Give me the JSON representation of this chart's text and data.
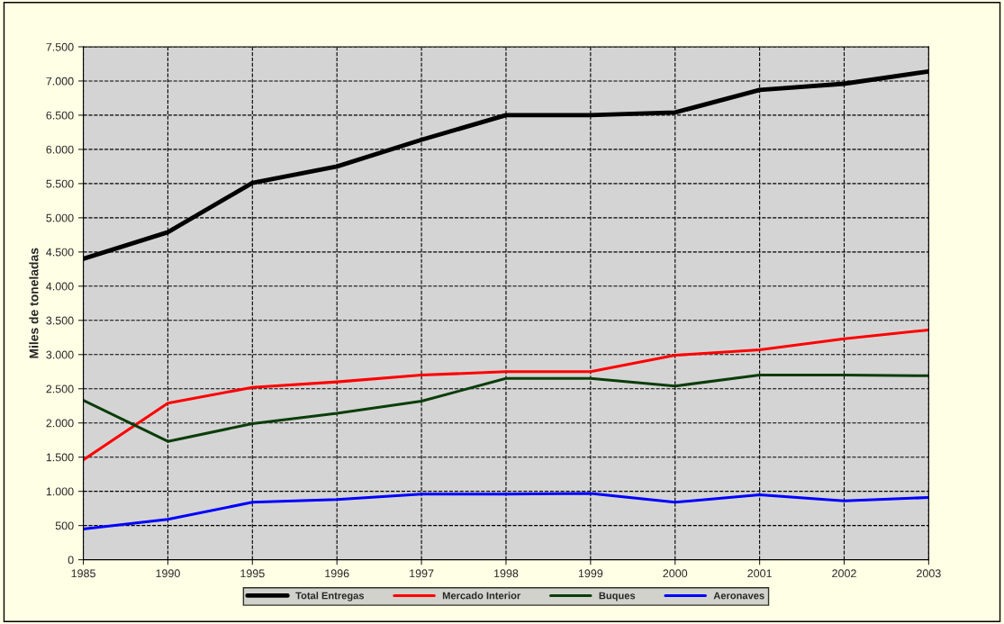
{
  "chart_data": {
    "type": "line",
    "ylabel": "Miles de toneladas",
    "categories": [
      "1985",
      "1990",
      "1995",
      "1996",
      "1997",
      "1998",
      "1999",
      "2000",
      "2001",
      "2002",
      "2003"
    ],
    "series": [
      {
        "name": "Total Entregas",
        "color": "#000000",
        "values": [
          4400,
          4790,
          5510,
          5750,
          6140,
          6500,
          6500,
          6540,
          6870,
          6960,
          7140
        ]
      },
      {
        "name": "Mercado Interior",
        "color": "#ff0000",
        "values": [
          1460,
          2290,
          2520,
          2600,
          2700,
          2750,
          2750,
          2990,
          3070,
          3230,
          3360
        ]
      },
      {
        "name": "Buques",
        "color": "#0b3d0b",
        "values": [
          2330,
          1730,
          1990,
          2140,
          2320,
          2650,
          2650,
          2540,
          2700,
          2700,
          2690
        ]
      },
      {
        "name": "Aeronaves",
        "color": "#0000ff",
        "values": [
          450,
          590,
          840,
          880,
          960,
          960,
          970,
          840,
          950,
          860,
          910
        ]
      }
    ],
    "ylim": [
      0,
      7500
    ],
    "yticks": [
      0,
      {
        "value": 500,
        "label": "500"
      },
      {
        "value": 1000,
        "label": "1.000"
      },
      {
        "value": 1500,
        "label": "1.500"
      },
      {
        "value": 2000,
        "label": "2.000"
      },
      {
        "value": 2500,
        "label": "2.500"
      },
      {
        "value": 3000,
        "label": "3.000"
      },
      {
        "value": 3500,
        "label": "3.500"
      },
      {
        "value": 4000,
        "label": "4.000"
      },
      {
        "value": 4500,
        "label": "4.500"
      },
      {
        "value": 5000,
        "label": "5.000"
      },
      {
        "value": 5500,
        "label": "5.500"
      },
      {
        "value": 6000,
        "label": "6.000"
      },
      {
        "value": 6500,
        "label": "6.500"
      },
      {
        "value": 7000,
        "label": "7.000"
      },
      {
        "value": 7500,
        "label": "7.500"
      }
    ],
    "grid": true,
    "legend": "bottom",
    "marker": "none",
    "line_style": "solid"
  }
}
